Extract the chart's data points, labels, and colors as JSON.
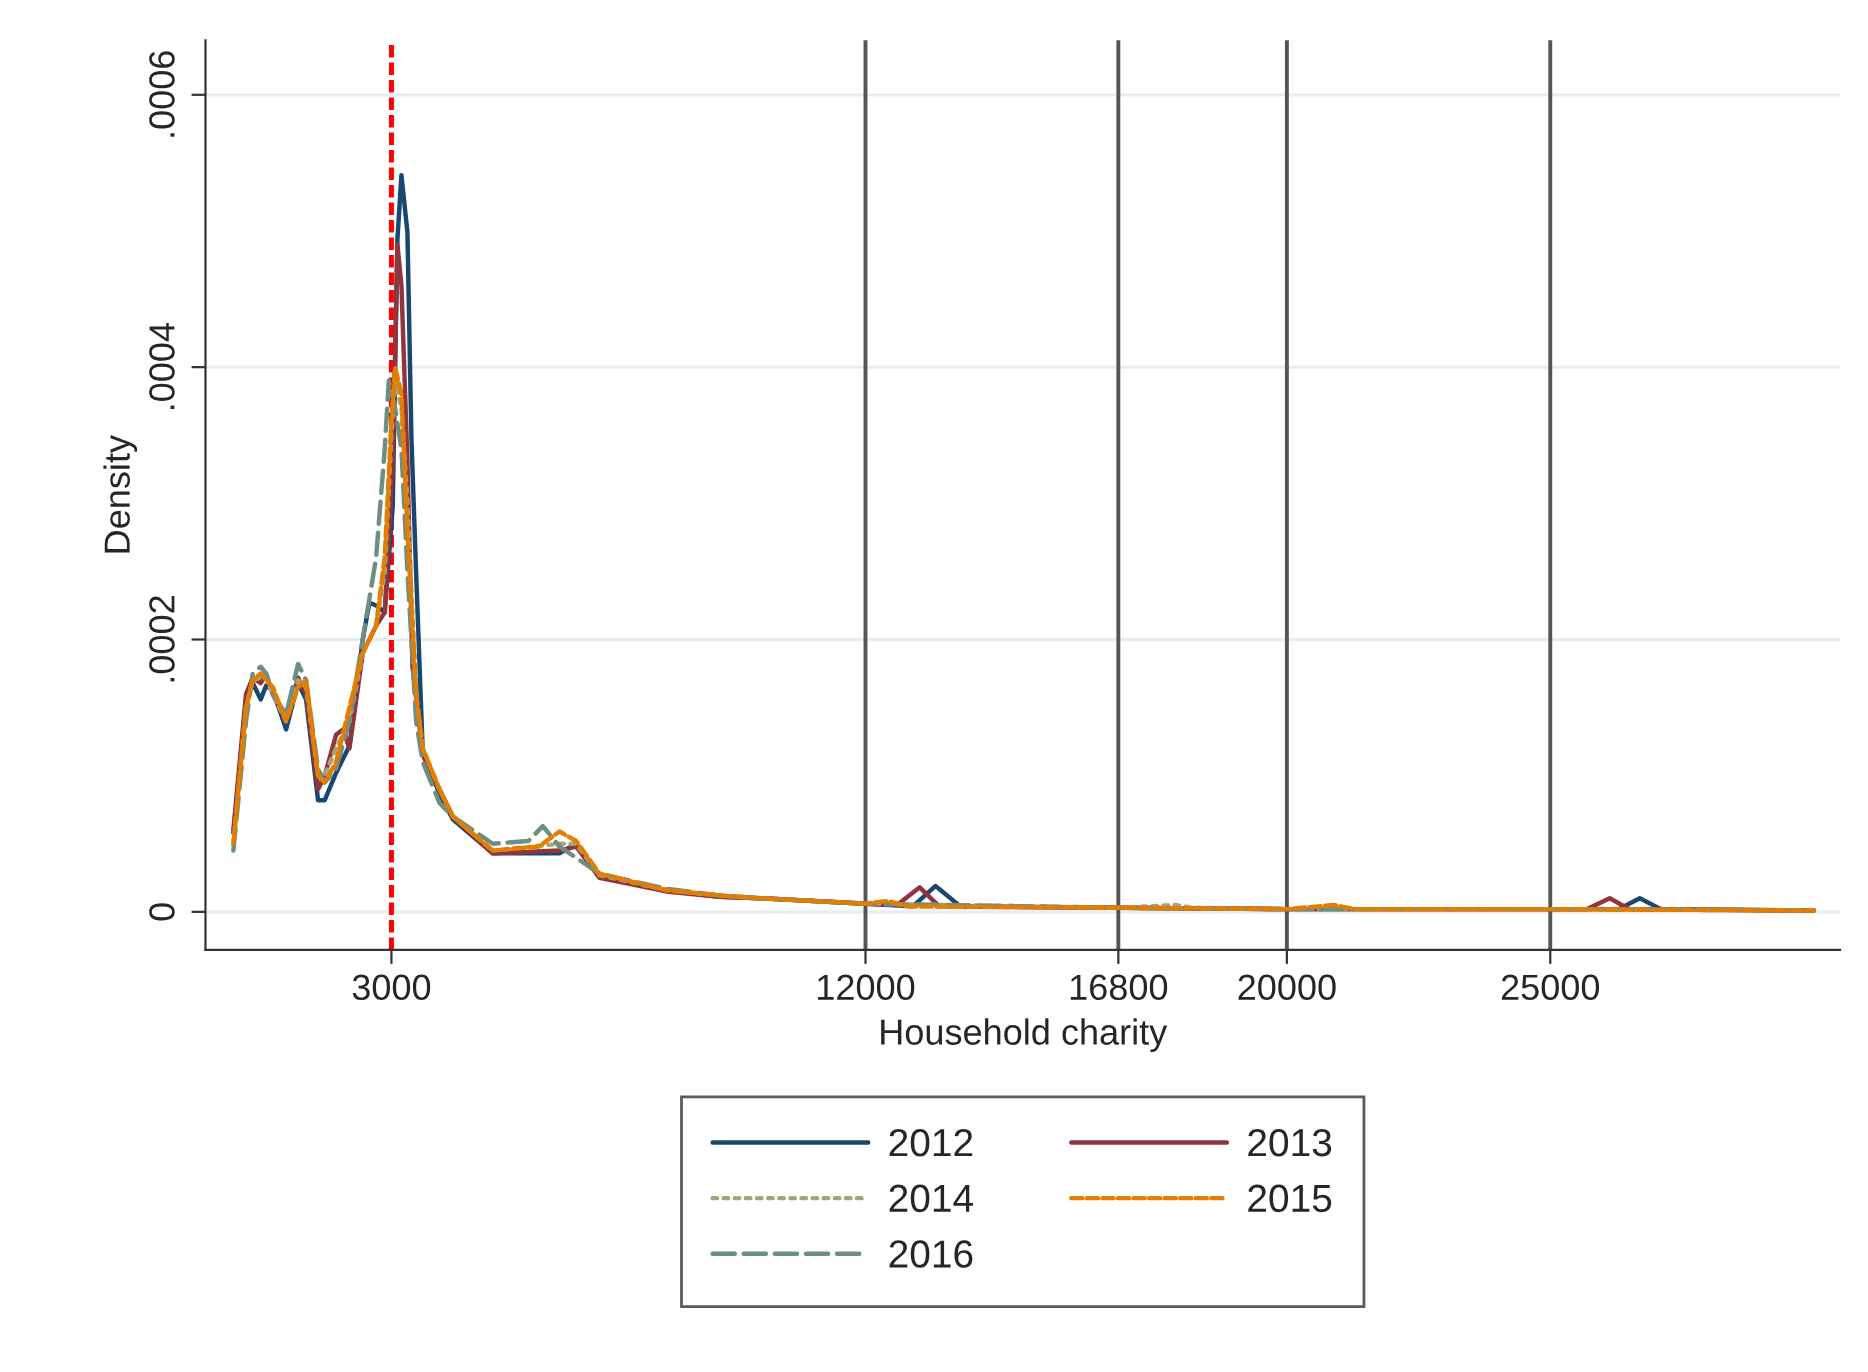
{
  "chart_data": {
    "type": "line",
    "xlabel": "Household charity",
    "ylabel": "Density",
    "xlim": [
      -530,
      30500
    ],
    "ylim": [
      -2.8e-05,
      0.00064
    ],
    "xticks": [
      3000,
      12000,
      16800,
      20000,
      25000
    ],
    "yticks": [
      {
        "value": 0,
        "label": "0"
      },
      {
        "value": 0.0002,
        "label": ".0002"
      },
      {
        "value": 0.0004,
        "label": ".0004"
      },
      {
        "value": 0.0006,
        "label": ".0006"
      }
    ],
    "grid": "y",
    "legend": "bottom",
    "marker": "none",
    "ref_lines": [
      {
        "axis": "x",
        "value": 3000,
        "color": "#ff0000",
        "line_style": "dashed"
      },
      {
        "axis": "x",
        "value": 12000,
        "color": "#555555",
        "line_style": "solid"
      },
      {
        "axis": "x",
        "value": 16800,
        "color": "#555555",
        "line_style": "solid"
      },
      {
        "axis": "x",
        "value": 20000,
        "color": "#555555",
        "line_style": "solid"
      },
      {
        "axis": "x",
        "value": 25000,
        "color": "#555555",
        "line_style": "solid"
      }
    ],
    "series": [
      {
        "name": "2012",
        "color": "#1a476f",
        "line_style": "solid",
        "x": [
          0,
          240,
          367,
          519,
          620,
          747,
          1000,
          1228,
          1380,
          1607,
          1734,
          1949,
          2203,
          2455,
          2582,
          2709,
          2873,
          3025,
          3114,
          3190,
          3304,
          3380,
          3469,
          3595,
          3912,
          4165,
          4924,
          6190,
          6507,
          6950,
          8216,
          9229,
          10000,
          12000,
          12900,
          13330,
          13800,
          16800,
          20000,
          25000,
          26300,
          26700,
          27100,
          30000
        ],
        "values": [
          5.8e-05,
          0.000156,
          0.000168,
          0.000156,
          0.000166,
          0.000163,
          0.000134,
          0.000168,
          0.000156,
          8.2e-05,
          8.2e-05,
          0.000102,
          0.000122,
          0.0002,
          0.000227,
          0.000225,
          0.00022,
          0.000298,
          0.000494,
          0.000541,
          0.000499,
          0.000347,
          0.000249,
          0.000117,
          8.7e-05,
          6.8e-05,
          4.3e-05,
          4.3e-05,
          5e-05,
          2.6e-05,
          1.6e-05,
          1.1e-05,
          1e-05,
          6e-06,
          4e-06,
          1.9e-05,
          4e-06,
          3e-06,
          2e-06,
          2e-06,
          2e-06,
          1e-05,
          2e-06,
          1e-06
        ]
      },
      {
        "name": "2013",
        "color": "#90353b",
        "line_style": "solid",
        "x": [
          0,
          240,
          367,
          519,
          620,
          747,
          1000,
          1228,
          1380,
          1607,
          1734,
          1949,
          2080,
          2203,
          2455,
          2709,
          2873,
          3025,
          3114,
          3190,
          3304,
          3400,
          3595,
          3912,
          4165,
          4924,
          6190,
          6507,
          6950,
          8216,
          9229,
          10000,
          12000,
          12600,
          13030,
          13400,
          16800,
          20000,
          25000,
          25700,
          26130,
          26500,
          30000
        ],
        "values": [
          6e-05,
          0.00016,
          0.000172,
          0.000168,
          0.000175,
          0.00016,
          0.00014,
          0.000172,
          0.00016,
          9e-05,
          0.0001,
          0.00013,
          0.000134,
          0.00012,
          0.00019,
          0.00021,
          0.00022,
          0.00033,
          0.00049,
          0.00046,
          0.00033,
          0.00018,
          0.000115,
          9e-05,
          7e-05,
          4.3e-05,
          4.5e-05,
          4.8e-05,
          2.5e-05,
          1.5e-05,
          1.1e-05,
          1e-05,
          6e-06,
          5e-06,
          1.8e-05,
          4e-06,
          3e-06,
          2e-06,
          2e-06,
          2e-06,
          1e-05,
          2e-06,
          1e-06
        ]
      },
      {
        "name": "2014",
        "color": "#a5a57a",
        "line_style": "dotted",
        "x": [
          0,
          240,
          367,
          519,
          620,
          747,
          1000,
          1228,
          1380,
          1607,
          1734,
          1949,
          2203,
          2455,
          2709,
          2873,
          3000,
          3070,
          3190,
          3304,
          3469,
          3595,
          3912,
          4165,
          4924,
          6190,
          6507,
          6950,
          8216,
          9229,
          10000,
          12000,
          16800,
          17880,
          18200,
          20000,
          25000,
          30000
        ],
        "values": [
          5e-05,
          0.00015,
          0.00017,
          0.000172,
          0.000172,
          0.00016,
          0.00014,
          0.00017,
          0.000165,
          0.0001,
          0.0001,
          0.00012,
          0.00014,
          0.00019,
          0.00021,
          0.00025,
          0.00035,
          0.00039,
          0.00037,
          0.0003,
          0.00016,
          0.00012,
          9e-05,
          7e-05,
          4.5e-05,
          5e-05,
          5e-05,
          2.7e-05,
          1.6e-05,
          1.2e-05,
          1e-05,
          6e-06,
          3e-06,
          5e-06,
          3e-06,
          2e-06,
          2e-06,
          1e-06
        ]
      },
      {
        "name": "2015",
        "color": "#e37e00",
        "line_style": "dashed",
        "x": [
          0,
          240,
          367,
          519,
          620,
          747,
          1000,
          1228,
          1380,
          1607,
          1734,
          1949,
          2203,
          2455,
          2709,
          2873,
          3000,
          3070,
          3190,
          3304,
          3469,
          3595,
          3912,
          4165,
          4924,
          5800,
          6190,
          6507,
          6950,
          8216,
          9229,
          10000,
          12000,
          12420,
          12800,
          16800,
          20000,
          20890,
          21300,
          25000,
          30000
        ],
        "values": [
          5e-05,
          0.00015,
          0.00017,
          0.000175,
          0.00017,
          0.000165,
          0.00014,
          0.000165,
          0.00017,
          0.0001,
          9.5e-05,
          0.00011,
          0.00015,
          0.00019,
          0.00021,
          0.00026,
          0.00036,
          0.0004,
          0.00038,
          0.00028,
          0.00016,
          0.00012,
          9e-05,
          7e-05,
          4.5e-05,
          4.8e-05,
          5.9e-05,
          5.2e-05,
          2.8e-05,
          1.6e-05,
          1.2e-05,
          1e-05,
          6e-06,
          8e-06,
          4e-06,
          3e-06,
          2e-06,
          5e-06,
          2e-06,
          2e-06,
          1e-06
        ]
      },
      {
        "name": "2016",
        "color": "#6e8e84",
        "line_style": "dashed",
        "x": [
          0,
          240,
          367,
          519,
          620,
          747,
          1000,
          1228,
          1380,
          1607,
          1734,
          1949,
          2203,
          2455,
          2709,
          2873,
          2950,
          3070,
          3190,
          3304,
          3469,
          3595,
          3912,
          4165,
          4924,
          5600,
          5875,
          6190,
          6950,
          8216,
          9229,
          10000,
          12000,
          16800,
          20000,
          25000,
          30000
        ],
        "values": [
          4.5e-05,
          0.00014,
          0.000175,
          0.00018,
          0.000175,
          0.00016,
          0.000145,
          0.000182,
          0.00017,
          0.000105,
          9.5e-05,
          0.000105,
          0.00014,
          0.0002,
          0.00026,
          0.00034,
          0.00039,
          0.00037,
          0.00034,
          0.00025,
          0.00014,
          0.00011,
          8e-05,
          7e-05,
          5e-05,
          5.2e-05,
          6.3e-05,
          4.8e-05,
          2.8e-05,
          1.7e-05,
          1.2e-05,
          1e-05,
          6e-06,
          3e-06,
          2e-06,
          2e-06,
          1e-06
        ]
      }
    ]
  }
}
